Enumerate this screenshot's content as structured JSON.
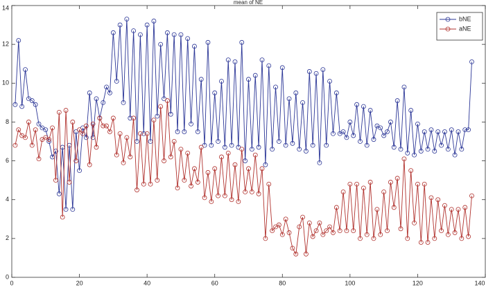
{
  "chart_data": {
    "type": "line",
    "title": "mean of NE",
    "x": [
      1,
      2,
      3,
      4,
      5,
      6,
      7,
      8,
      9,
      10,
      11,
      12,
      13,
      14,
      15,
      16,
      17,
      18,
      19,
      20,
      21,
      22,
      23,
      24,
      25,
      26,
      27,
      28,
      29,
      30,
      31,
      32,
      33,
      34,
      35,
      36,
      37,
      38,
      39,
      40,
      41,
      42,
      43,
      44,
      45,
      46,
      47,
      48,
      49,
      50,
      51,
      52,
      53,
      54,
      55,
      56,
      57,
      58,
      59,
      60,
      61,
      62,
      63,
      64,
      65,
      66,
      67,
      68,
      69,
      70,
      71,
      72,
      73,
      74,
      75,
      76,
      77,
      78,
      79,
      80,
      81,
      82,
      83,
      84,
      85,
      86,
      87,
      88,
      89,
      90,
      91,
      92,
      93,
      94,
      95,
      96,
      97,
      98,
      99,
      100,
      101,
      102,
      103,
      104,
      105,
      106,
      107,
      108,
      109,
      110,
      111,
      112,
      113,
      114,
      115,
      116,
      117,
      118,
      119,
      120,
      121,
      122,
      123,
      124,
      125,
      126,
      127,
      128,
      129,
      130,
      131,
      132,
      133,
      134,
      135,
      136
    ],
    "series": [
      {
        "name": "bNE",
        "color": "#2a3596",
        "values": [
          8.9,
          12.2,
          8.8,
          10.7,
          9.2,
          9.1,
          8.9,
          7.9,
          7.7,
          7.6,
          7.0,
          6.2,
          6.5,
          4.3,
          6.7,
          3.5,
          6.8,
          3.5,
          7.5,
          5.5,
          7.7,
          7.2,
          9.5,
          7.2,
          9.2,
          8.2,
          9.0,
          9.8,
          9.5,
          12.6,
          10.1,
          13.0,
          9.0,
          13.3,
          8.2,
          12.7,
          7.0,
          12.5,
          7.4,
          13.0,
          7.0,
          13.2,
          8.3,
          12.0,
          9.2,
          12.6,
          8.4,
          12.5,
          7.5,
          12.5,
          7.5,
          12.3,
          7.9,
          11.9,
          7.5,
          10.2,
          6.8,
          12.1,
          6.8,
          9.5,
          7.0,
          10.1,
          6.7,
          11.2,
          6.8,
          11.1,
          6.7,
          12.1,
          6.0,
          10.2,
          6.6,
          10.4,
          6.7,
          11.2,
          5.8,
          10.9,
          6.6,
          9.8,
          7.0,
          10.8,
          6.8,
          9.2,
          6.9,
          9.5,
          6.6,
          9.0,
          6.5,
          10.6,
          6.8,
          10.5,
          5.9,
          10.7,
          6.8,
          10.1,
          7.4,
          9.5,
          7.4,
          7.5,
          7.2,
          8.0,
          7.3,
          8.9,
          7.0,
          8.8,
          6.8,
          8.6,
          7.1,
          7.8,
          7.7,
          7.3,
          7.5,
          8.0,
          6.7,
          9.1,
          6.6,
          9.8,
          6.4,
          8.6,
          6.3,
          7.9,
          6.5,
          7.5,
          6.6,
          7.6,
          6.5,
          7.5,
          6.8,
          7.5,
          6.6,
          7.6,
          6.3,
          7.5,
          6.6,
          7.6,
          7.6,
          11.1
        ]
      },
      {
        "name": "aNE",
        "color": "#b0302c",
        "values": [
          6.8,
          7.6,
          7.3,
          7.2,
          8.0,
          6.8,
          7.6,
          6.1,
          7.1,
          7.2,
          7.1,
          7.7,
          5.0,
          8.5,
          3.1,
          8.6,
          4.9,
          8.0,
          6.0,
          7.6,
          7.4,
          7.8,
          5.8,
          7.9,
          6.7,
          8.2,
          7.8,
          7.8,
          7.5,
          8.2,
          6.3,
          7.4,
          5.9,
          7.2,
          6.2,
          8.2,
          4.5,
          7.4,
          4.8,
          7.4,
          4.8,
          8.1,
          5.0,
          8.8,
          6.0,
          9.1,
          6.2,
          7.0,
          4.6,
          6.6,
          5.0,
          6.4,
          4.7,
          5.6,
          4.9,
          6.7,
          4.1,
          5.4,
          3.9,
          5.6,
          4.2,
          6.2,
          4.2,
          6.4,
          4.0,
          5.8,
          3.9,
          6.6,
          4.4,
          5.6,
          4.4,
          6.3,
          4.3,
          5.6,
          2.0,
          4.8,
          2.4,
          2.6,
          2.7,
          2.2,
          3.0,
          2.3,
          1.5,
          1.2,
          2.6,
          3.1,
          1.2,
          2.8,
          2.1,
          2.4,
          2.8,
          2.2,
          2.4,
          2.6,
          2.3,
          3.6,
          2.4,
          4.4,
          2.4,
          4.8,
          2.4,
          4.8,
          2.0,
          4.6,
          2.2,
          4.9,
          2.0,
          3.5,
          2.2,
          4.4,
          2.4,
          4.9,
          3.6,
          5.1,
          2.5,
          6.1,
          2.0,
          5.5,
          2.8,
          4.8,
          1.8,
          4.8,
          1.8,
          4.1,
          2.0,
          4.0,
          2.4,
          3.7,
          2.2,
          3.5,
          2.3,
          3.5,
          2.0,
          3.6,
          2.1,
          4.2
        ]
      }
    ],
    "xlim": [
      0,
      140
    ],
    "xticks": [
      0,
      20,
      40,
      60,
      80,
      100,
      120,
      140
    ],
    "ylim": [
      0,
      14
    ],
    "yticks": [
      0,
      2,
      4,
      6,
      8,
      10,
      12,
      14
    ],
    "legend": "northeast",
    "marker": "circle"
  }
}
